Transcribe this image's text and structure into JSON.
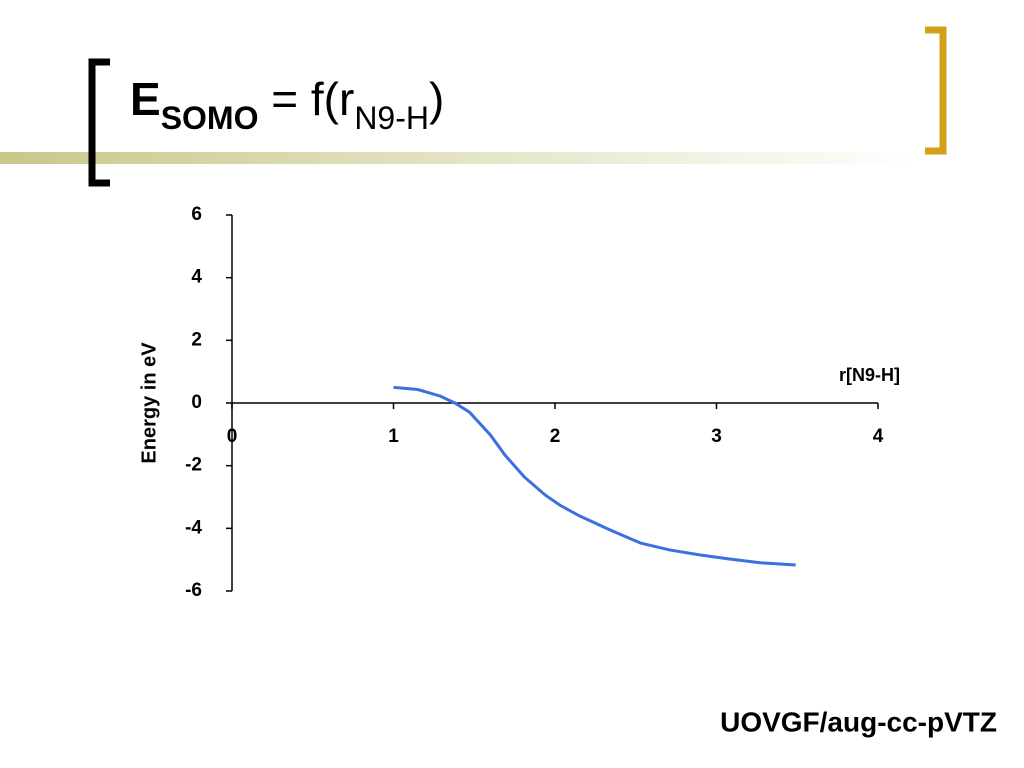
{
  "title": [
    "E",
    "SOMO",
    " = f(r",
    "N9-H",
    ")"
  ],
  "footer": "UOVGF/aug-cc-pVTZ",
  "chart_data": {
    "type": "line",
    "x_label": "r[N9-H]",
    "y_label": "Energy in eV",
    "xlim": [
      0,
      4
    ],
    "xticks": [
      0,
      1,
      2,
      3,
      4
    ],
    "ylim": [
      -6,
      6
    ],
    "yticks": [
      -6,
      -4,
      -2,
      0,
      2,
      4,
      6
    ],
    "series": [
      {
        "color": "#3c6fe0",
        "x": [
          1.0,
          1.15,
          1.29,
          1.38,
          1.47,
          1.6,
          1.69,
          1.81,
          1.94,
          2.03,
          2.15,
          2.34,
          2.53,
          2.71,
          2.9,
          3.08,
          3.27,
          3.49
        ],
        "values": [
          0.5,
          0.43,
          0.22,
          0,
          -0.29,
          -1.02,
          -1.66,
          -2.36,
          -2.94,
          -3.26,
          -3.6,
          -4.05,
          -4.47,
          -4.69,
          -4.85,
          -4.98,
          -5.1,
          -5.17
        ]
      }
    ]
  }
}
